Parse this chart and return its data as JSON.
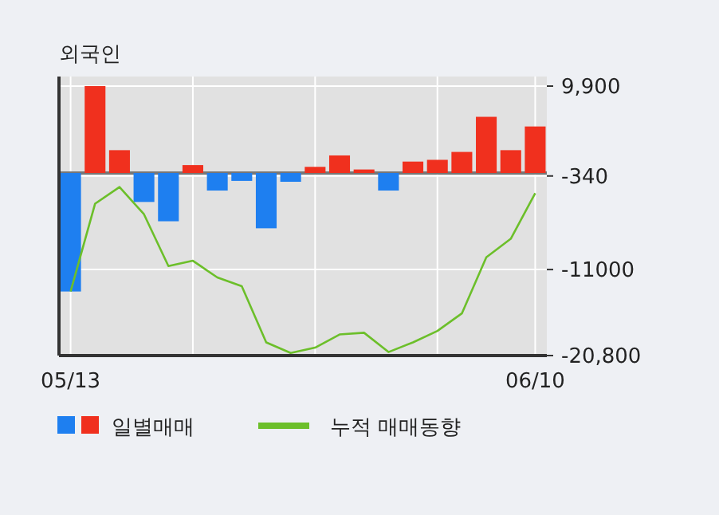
{
  "chart_data": {
    "type": "bar",
    "title": "외국인",
    "categories": [
      "05/13",
      null,
      null,
      null,
      null,
      null,
      null,
      null,
      null,
      null,
      null,
      null,
      null,
      null,
      null,
      null,
      null,
      null,
      null,
      "06/10"
    ],
    "series": [
      {
        "name": "일별매매",
        "colors": [
          "#1e7ff0",
          "#f0301e",
          "#f0301e",
          "#1e7ff0",
          "#1e7ff0",
          "#f0301e",
          "#1e7ff0",
          "#1e7ff0",
          "#1e7ff0",
          "#1e7ff0",
          "#f0301e",
          "#f0301e",
          "#f0301e",
          "#1e7ff0",
          "#f0301e",
          "#f0301e",
          "#f0301e",
          "#f0301e",
          "#f0301e",
          "#f0301e"
        ],
        "values": [
          -13500,
          9900,
          2600,
          -3300,
          -5500,
          900,
          -2000,
          -900,
          -6300,
          -1000,
          700,
          2000,
          400,
          -2000,
          1300,
          1500,
          2400,
          6400,
          2600,
          5300
        ]
      },
      {
        "type": "line",
        "name": "누적 매매동향",
        "color": "#6cbf2a",
        "values": [
          -13500,
          -3500,
          -1600,
          -4700,
          -10600,
          -10000,
          -11900,
          -12900,
          -19300,
          -20500,
          -19900,
          -18400,
          -18200,
          -20400,
          -19300,
          -18000,
          -16000,
          -9600,
          -7500,
          -2300
        ]
      }
    ],
    "ylim": [
      -20800,
      9900
    ],
    "yticks": [
      {
        "value": 9900,
        "label": "9,900"
      },
      -340,
      -11000,
      {
        "value": -20800,
        "label": "-20,800"
      }
    ],
    "grid": true,
    "legend": "bottom"
  }
}
